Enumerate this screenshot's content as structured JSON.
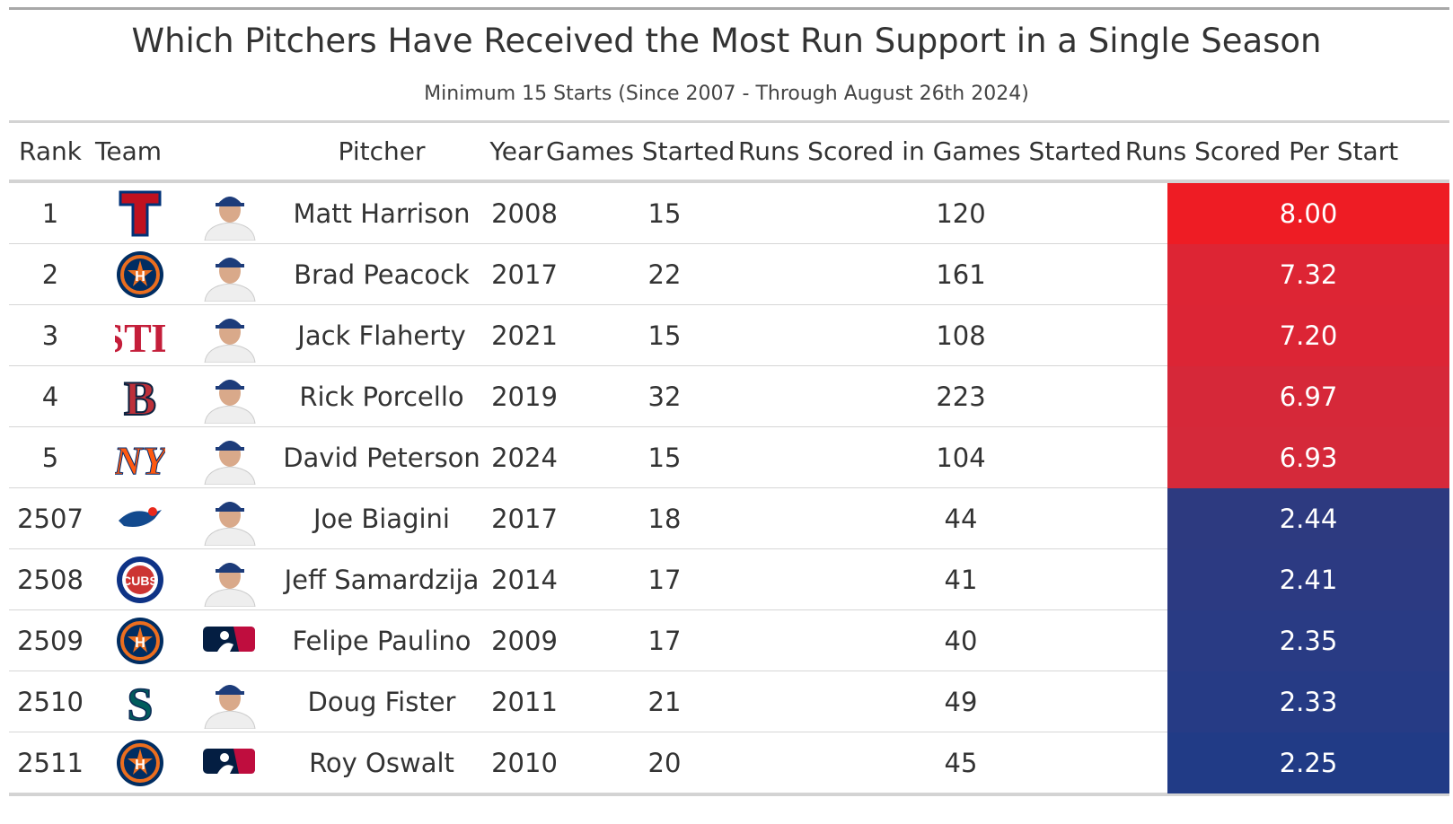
{
  "title": "Which Pitchers Have Received the Most Run Support in a Single Season",
  "subtitle": "Minimum 15 Starts (Since 2007 - Through August 26th 2024)",
  "columns": {
    "rank": "Rank",
    "team": "Team",
    "pitcher": "Pitcher",
    "year": "Year",
    "games_started": "Games Started",
    "runs_scored": "Runs Scored in Games Started",
    "runs_per_start": "Runs Scored Per Start"
  },
  "colors": {
    "high": "#EE1C24",
    "low": "#213B86"
  },
  "chart_data": {
    "type": "table",
    "title": "Which Pitchers Have Received the Most Run Support in a Single Season",
    "subtitle": "Minimum 15 Starts (Since 2007 - Through August 26th 2024)",
    "columns": [
      "Rank",
      "Team",
      "Pitcher",
      "Year",
      "Games Started",
      "Runs Scored in Games Started",
      "Runs Scored Per Start"
    ],
    "rows": [
      {
        "rank": "1",
        "team_logo": "rangers-logo",
        "headshot": "player-photo",
        "pitcher": "Matt Harrison",
        "year": "2008",
        "games_started": "15",
        "runs": "120",
        "rps": "8.00",
        "rps_value": 8.0,
        "rps_color": "#EE1C24"
      },
      {
        "rank": "2",
        "team_logo": "astros-logo",
        "headshot": "player-photo",
        "pitcher": "Brad Peacock",
        "year": "2017",
        "games_started": "22",
        "runs": "161",
        "rps": "7.32",
        "rps_value": 7.32,
        "rps_color": "#DD2534"
      },
      {
        "rank": "3",
        "team_logo": "cardinals-logo",
        "headshot": "player-photo",
        "pitcher": "Jack Flaherty",
        "year": "2021",
        "games_started": "15",
        "runs": "108",
        "rps": "7.20",
        "rps_value": 7.2,
        "rps_color": "#DC2535"
      },
      {
        "rank": "4",
        "team_logo": "red-sox-logo",
        "headshot": "player-photo",
        "pitcher": "Rick Porcello",
        "year": "2019",
        "games_started": "32",
        "runs": "223",
        "rps": "6.97",
        "rps_value": 6.97,
        "rps_color": "#D62839"
      },
      {
        "rank": "5",
        "team_logo": "mets-logo",
        "headshot": "player-photo",
        "pitcher": "David Peterson",
        "year": "2024",
        "games_started": "15",
        "runs": "104",
        "rps": "6.93",
        "rps_value": 6.93,
        "rps_color": "#D5293A"
      },
      {
        "rank": "2507",
        "team_logo": "blue-jays-logo",
        "headshot": "player-photo",
        "pitcher": "Joe Biagini",
        "year": "2017",
        "games_started": "18",
        "runs": "44",
        "rps": "2.44",
        "rps_value": 2.44,
        "rps_color": "#2D3A80"
      },
      {
        "rank": "2508",
        "team_logo": "cubs-logo",
        "headshot": "player-photo",
        "pitcher": "Jeff Samardzija",
        "year": "2014",
        "games_started": "17",
        "runs": "41",
        "rps": "2.41",
        "rps_value": 2.41,
        "rps_color": "#2C3A82"
      },
      {
        "rank": "2509",
        "team_logo": "astros-logo",
        "headshot": "mlb-logo",
        "pitcher": "Felipe Paulino",
        "year": "2009",
        "games_started": "17",
        "runs": "40",
        "rps": "2.35",
        "rps_value": 2.35,
        "rps_color": "#293B84"
      },
      {
        "rank": "2510",
        "team_logo": "mariners-logo",
        "headshot": "player-photo",
        "pitcher": "Doug Fister",
        "year": "2011",
        "games_started": "21",
        "runs": "49",
        "rps": "2.33",
        "rps_value": 2.33,
        "rps_color": "#263B85"
      },
      {
        "rank": "2511",
        "team_logo": "astros-logo",
        "headshot": "mlb-logo",
        "pitcher": "Roy Oswalt",
        "year": "2010",
        "games_started": "20",
        "runs": "45",
        "rps": "2.25",
        "rps_value": 2.25,
        "rps_color": "#213B86"
      }
    ]
  }
}
